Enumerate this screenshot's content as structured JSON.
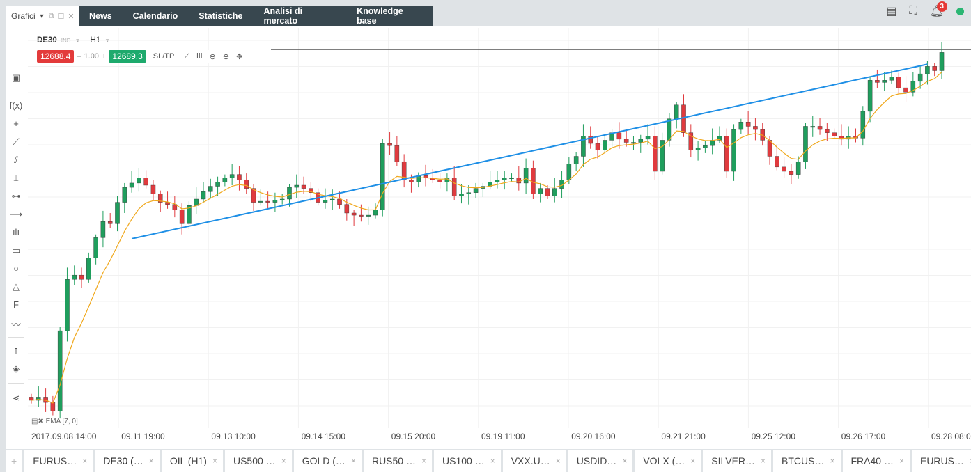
{
  "header": {
    "panel_title": "Grafici",
    "nav": [
      "News",
      "Calendario",
      "Statistiche",
      "Analisi di mercato",
      "Knowledge base"
    ],
    "notifications": "3"
  },
  "symbol": {
    "name": "DE30",
    "type": "IND",
    "timeframe": "H1"
  },
  "trade": {
    "sell": "12688.4",
    "qty": "1.00",
    "buy": "12689.3",
    "sltp": "SL/TP",
    "minus": "–",
    "plus": "+"
  },
  "indicator": "EMA [7, 0]",
  "colors": {
    "up": "#1f9e5d",
    "down": "#e03a3e",
    "ema": "#f0a81c",
    "trend": "#1e8fe6"
  },
  "chart_data": {
    "type": "candlestick",
    "symbol": "DE30",
    "timeframe": "H1",
    "x_tick_labels": [
      "2017.09.08 14:00",
      "09.11 19:00",
      "09.13 10:00",
      "09.14 15:00",
      "09.15 20:00",
      "09.19 11:00",
      "09.20 16:00",
      "09.21 21:00",
      "09.25 12:00",
      "09.26 17:00",
      "09.28 08:00"
    ],
    "closes": [
      12362,
      12365,
      12360,
      12352,
      12427,
      12475,
      12479,
      12475,
      12495,
      12514,
      12529,
      12527,
      12547,
      12561,
      12565,
      12570,
      12563,
      12555,
      12547,
      12545,
      12540,
      12527,
      12544,
      12550,
      12557,
      12562,
      12566,
      12570,
      12573,
      12568,
      12560,
      12547,
      12548,
      12547,
      12549,
      12550,
      12561,
      12563,
      12560,
      12556,
      12547,
      12549,
      12550,
      12545,
      12537,
      12535,
      12534,
      12535,
      12540,
      12602,
      12600,
      12585,
      12568,
      12566,
      12572,
      12570,
      12568,
      12566,
      12570,
      12553,
      12555,
      12556,
      12560,
      12562,
      12566,
      12568,
      12570,
      12570,
      12565,
      12579,
      12555,
      12560,
      12553,
      12560,
      12568,
      12583,
      12590,
      12609,
      12602,
      12596,
      12605,
      12612,
      12606,
      12603,
      12603,
      12606,
      12609,
      12576,
      12605,
      12625,
      12638,
      12612,
      12596,
      12598,
      12600,
      12605,
      12609,
      12576,
      12615,
      12622,
      12618,
      12615,
      12605,
      12590,
      12580,
      12576,
      12573,
      12585,
      12618,
      12618,
      12615,
      12612,
      12609,
      12606,
      12609,
      12607,
      12632,
      12661,
      12659,
      12661,
      12664,
      12654,
      12650,
      12660,
      12667,
      12674,
      12670,
      12687
    ],
    "ema_period": 7,
    "current_price": 12688.4,
    "trendline": {
      "from": {
        "index": 14,
        "price": 12513
      },
      "to": {
        "index": 125,
        "price": 12676
      }
    },
    "ylim": [
      12336,
      12710
    ]
  },
  "tabs": [
    "EURUS…",
    "DE30 (…",
    "OIL (H1)",
    "US500 …",
    "GOLD (…",
    "RUS50 …",
    "US100 …",
    "VXX.U…",
    "USDID…",
    "VOLX (…",
    "SILVER…",
    "BTCUS…",
    "FRA40 …",
    "EURUS…"
  ]
}
